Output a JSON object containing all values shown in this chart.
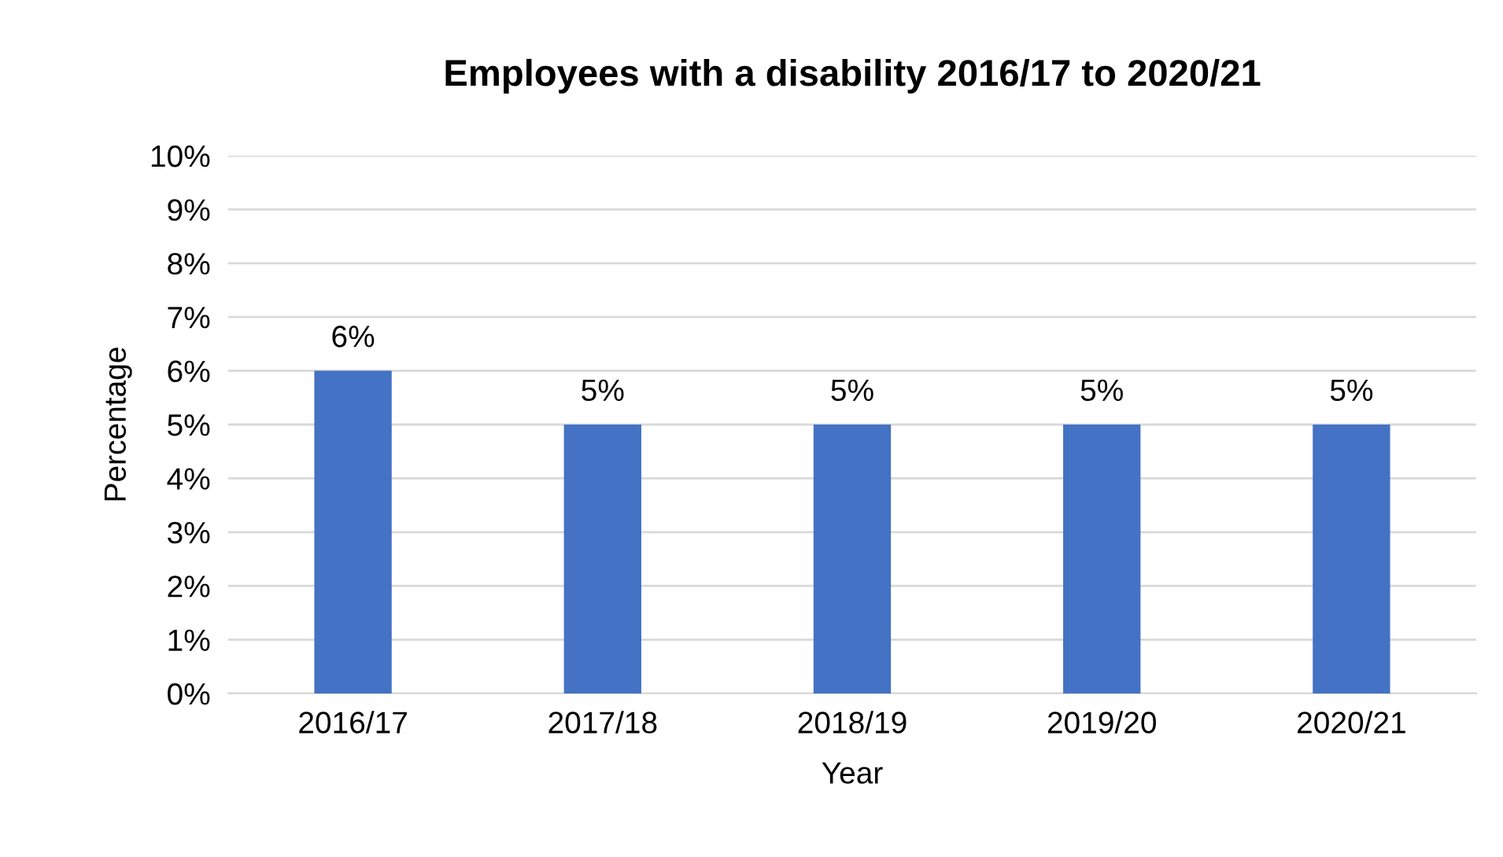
{
  "chart_data": {
    "type": "bar",
    "title": "Employees with a disability 2016/17 to 2020/21",
    "xlabel": "Year",
    "ylabel": "Percentage",
    "categories": [
      "2016/17",
      "2017/18",
      "2018/19",
      "2019/20",
      "2020/21"
    ],
    "values": [
      6,
      5,
      5,
      5,
      5
    ],
    "color": "#4472c4",
    "value_labels": [
      "6%",
      "5%",
      "5%",
      "5%",
      "5%"
    ],
    "ylim": [
      0,
      10
    ],
    "yticks": [
      {
        "value": 0,
        "label": "0%"
      },
      {
        "value": 1,
        "label": "1%"
      },
      {
        "value": 2,
        "label": "2%"
      },
      {
        "value": 3,
        "label": "3%"
      },
      {
        "value": 4,
        "label": "4%"
      },
      {
        "value": 5,
        "label": "5%"
      },
      {
        "value": 6,
        "label": "6%"
      },
      {
        "value": 7,
        "label": "7%"
      },
      {
        "value": 8,
        "label": "8%"
      },
      {
        "value": 9,
        "label": "9%"
      },
      {
        "value": 10,
        "label": "10%"
      }
    ],
    "grid": "y",
    "legend": false
  }
}
